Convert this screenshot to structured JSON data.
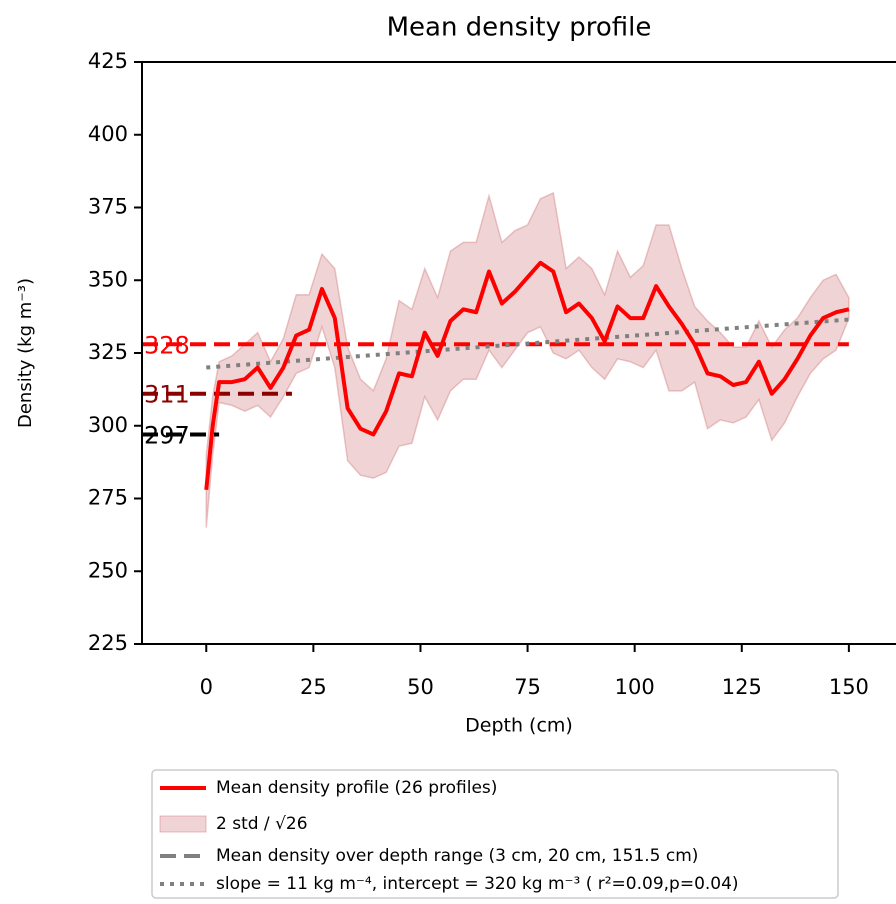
{
  "chart_data": {
    "type": "line",
    "title": "Mean density profile",
    "xlabel": "Depth (cm)",
    "ylabel": "Density (kg m⁻³)",
    "x": [
      0,
      1.5,
      3,
      6,
      9,
      12,
      15,
      18,
      21,
      24,
      27,
      30,
      33,
      36,
      39,
      42,
      45,
      48,
      51,
      54,
      57,
      60,
      63,
      66,
      69,
      72,
      75,
      78,
      81,
      84,
      87,
      90,
      93,
      96,
      99,
      102,
      105,
      108,
      111,
      114,
      117,
      120,
      123,
      126,
      129,
      132,
      135,
      138,
      141,
      144,
      147,
      150
    ],
    "series": [
      {
        "name": "Mean density profile (26 profiles)",
        "color": "#ff0000",
        "values": [
          278,
          300,
          315,
          315,
          316,
          320,
          313,
          320,
          331,
          333,
          347,
          337,
          306,
          299,
          297,
          305,
          318,
          317,
          332,
          324,
          336,
          340,
          339,
          353,
          342,
          346,
          351,
          356,
          353,
          339,
          342,
          337,
          329,
          341,
          337,
          337,
          348,
          341,
          335,
          328,
          318,
          317,
          314,
          315,
          322,
          311,
          316,
          323,
          331,
          337,
          339,
          340
        ]
      }
    ],
    "band": {
      "name": "2 std / √26",
      "color": "#c86468",
      "upper": [
        290,
        310,
        322,
        324,
        328,
        332,
        322,
        330,
        345,
        345,
        359,
        354,
        327,
        316,
        312,
        323,
        343,
        340,
        354,
        344,
        360,
        363,
        363,
        379,
        363,
        367,
        369,
        378,
        380,
        354,
        358,
        354,
        345,
        360,
        351,
        355,
        369,
        369,
        354,
        341,
        336,
        332,
        327,
        327,
        336,
        327,
        333,
        337,
        344,
        350,
        352,
        344
      ],
      "lower": [
        265,
        290,
        308,
        307,
        305,
        307,
        303,
        310,
        318,
        320,
        334,
        320,
        288,
        283,
        282,
        284,
        293,
        294,
        310,
        302,
        312,
        316,
        316,
        326,
        320,
        326,
        332,
        334,
        325,
        323,
        326,
        320,
        316,
        323,
        322,
        320,
        326,
        312,
        312,
        315,
        299,
        302,
        301,
        303,
        309,
        295,
        301,
        310,
        318,
        323,
        326,
        337
      ]
    },
    "ref_lines": {
      "name": "Mean density over depth range (3 cm, 20 cm, 151.5 cm)",
      "legend_color": "#808080",
      "lines": [
        {
          "value": 328,
          "color": "#ff0000",
          "x_end": 150
        },
        {
          "value": 311,
          "color": "#8b0000",
          "x_end": 20
        },
        {
          "value": 297,
          "color": "#000000",
          "x_end": 3
        }
      ]
    },
    "trend": {
      "name": "slope = 11 kg m⁻⁴, intercept = 320 kg m⁻³ ( r²=0.09,p=0.04)",
      "color": "#808080",
      "x": [
        0,
        150
      ],
      "values": [
        320,
        336.5
      ]
    },
    "xlim": [
      -15,
      161
    ],
    "ylim": [
      225,
      425
    ],
    "xticks": [
      0,
      25,
      50,
      75,
      100,
      125,
      150
    ],
    "yticks": [
      225,
      250,
      275,
      300,
      325,
      350,
      375,
      400,
      425
    ]
  }
}
